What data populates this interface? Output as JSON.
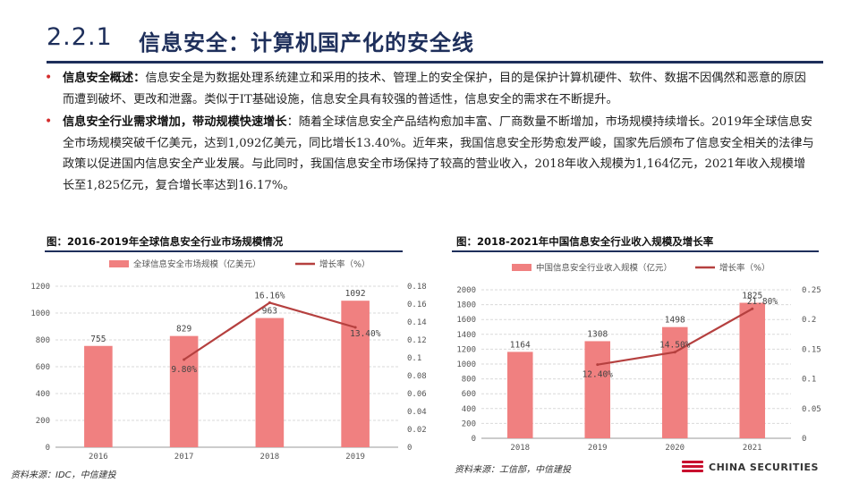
{
  "header": {
    "section_number": "2.2.1",
    "title": "信息安全：计算机国产化的安全线"
  },
  "bullets": [
    {
      "lead": "信息安全概述：",
      "text": "信息安全是为数据处理系统建立和采用的技术、管理上的安全保护，目的是保护计算机硬件、软件、数据不因偶然和恶意的原因而遭到破坏、更改和泄露。类似于IT基础设施，信息安全具有较强的普适性，信息安全的需求在不断提升。"
    },
    {
      "lead": "信息安全行业需求增加，带动规模快速增长",
      "text": "：随着全球信息安全产品结构愈加丰富、厂商数量不断增加，市场规模持续增长。2019年全球信息安全市场规模突破千亿美元，达到1,092亿美元，同比增长13.40%。近年来，我国信息安全形势愈发严峻，国家先后颁布了信息安全相关的法律与政策以促进国内信息安全产业发展。与此同时，我国信息安全市场保持了较高的营业收入，2018年收入规模为1,164亿元，2021年收入规模增长至1,825亿元，复合增长率达到16.17%。"
    }
  ],
  "figures": [
    {
      "title": "图：2016-2019年全球信息安全行业市场规模情况",
      "source": "资料来源：IDC，中信建投"
    },
    {
      "title": "图：2018-2021年中国信息安全行业收入规模及增长率",
      "source": "资料来源：工信部，中信建投"
    }
  ],
  "brand": {
    "name": "CHINA SECURITIES"
  },
  "colors": {
    "bar": "#f08080",
    "line": "#b5403f",
    "navy": "#1e2f5b",
    "accent": "#d42c2c"
  },
  "chart_data": [
    {
      "type": "bar",
      "categories": [
        "2016",
        "2017",
        "2018",
        "2019"
      ],
      "series": [
        {
          "name": "全球信息安全市场规模（亿美元）",
          "type": "bar",
          "axis": "left",
          "values": [
            755,
            829,
            963,
            1092
          ],
          "labels": [
            "755",
            "829",
            "963",
            "1092"
          ]
        },
        {
          "name": "增长率（%）",
          "type": "line",
          "axis": "right",
          "values": [
            null,
            0.098,
            0.1616,
            0.134
          ],
          "labels": [
            "",
            "9.80%",
            "16.16%",
            "13.40%"
          ]
        }
      ],
      "y_left": {
        "min": 0,
        "max": 1200,
        "ticks": [
          "0",
          "200",
          "400",
          "600",
          "800",
          "1000",
          "1200"
        ]
      },
      "y_right": {
        "min": 0,
        "max": 0.18,
        "ticks": [
          "0",
          "0.02",
          "0.04",
          "0.06",
          "0.08",
          "0.1",
          "0.12",
          "0.14",
          "0.16",
          "0.18"
        ]
      },
      "grid": true,
      "legend": "top"
    },
    {
      "type": "bar",
      "categories": [
        "2018",
        "2019",
        "2020",
        "2021"
      ],
      "series": [
        {
          "name": "中国信息安全行业收入规模（亿元）",
          "type": "bar",
          "axis": "left",
          "values": [
            1164,
            1308,
            1498,
            1825
          ],
          "labels": [
            "1164",
            "1308",
            "1498",
            "1825"
          ]
        },
        {
          "name": "增长率（%）",
          "type": "line",
          "axis": "right",
          "values": [
            null,
            0.124,
            0.145,
            0.218
          ],
          "labels": [
            "",
            "12.40%",
            "14.50%",
            "21.80%"
          ]
        }
      ],
      "y_left": {
        "min": 0,
        "max": 2000,
        "ticks": [
          "0",
          "200",
          "400",
          "600",
          "800",
          "1000",
          "1200",
          "1400",
          "1600",
          "1800",
          "2000"
        ]
      },
      "y_right": {
        "min": 0,
        "max": 0.25,
        "ticks": [
          "0",
          "0.05",
          "0.1",
          "0.15",
          "0.2",
          "0.25"
        ]
      },
      "grid": true,
      "legend": "top"
    }
  ]
}
